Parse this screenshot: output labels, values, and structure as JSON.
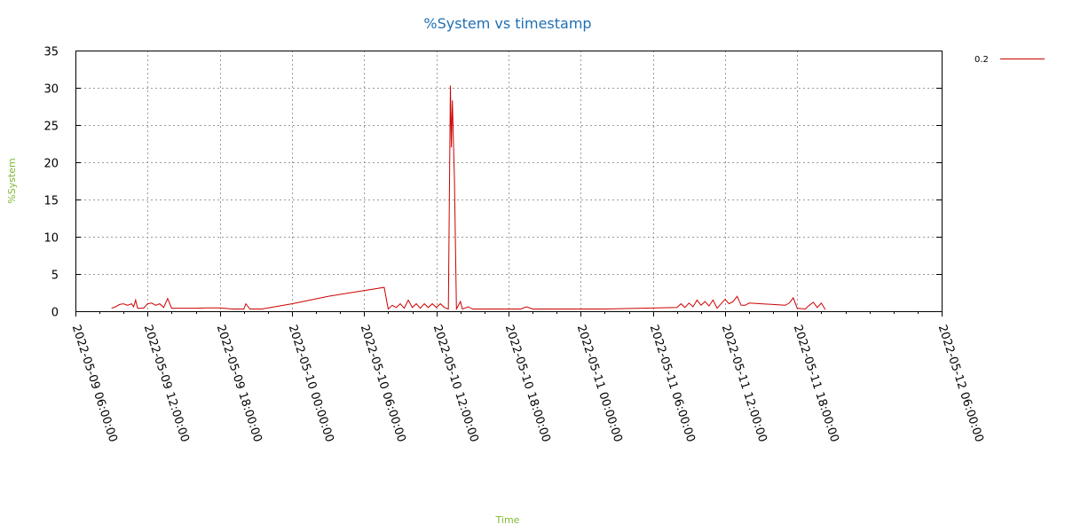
{
  "chart_data": {
    "type": "line",
    "title": "%System vs timestamp",
    "xlabel": "Time",
    "ylabel": "%System",
    "ylim": [
      0,
      35
    ],
    "y_ticks": [
      "0",
      "5",
      "10",
      "15",
      "20",
      "25",
      "30",
      "35"
    ],
    "xlim": [
      "2022-05-09 06:00:00",
      "2022-05-12 06:00:00"
    ],
    "x_ticks": [
      "2022-05-09 06:00:00",
      "2022-05-09 12:00:00",
      "2022-05-09 18:00:00",
      "2022-05-10 00:00:00",
      "2022-05-10 06:00:00",
      "2022-05-10 12:00:00",
      "2022-05-10 18:00:00",
      "2022-05-11 00:00:00",
      "2022-05-11 06:00:00",
      "2022-05-11 12:00:00",
      "2022-05-11 18:00:00",
      "2022-05-12 06:00:00"
    ],
    "grid": true,
    "legend_position": "top-right",
    "series": [
      {
        "name": "0.2",
        "color": "#cc0000",
        "points": [
          [
            "2022-05-09 09:00:00",
            0.4
          ],
          [
            "2022-05-09 09:20:00",
            0.6
          ],
          [
            "2022-05-09 09:40:00",
            0.9
          ],
          [
            "2022-05-09 10:00:00",
            1.0
          ],
          [
            "2022-05-09 10:20:00",
            0.8
          ],
          [
            "2022-05-09 10:40:00",
            1.0
          ],
          [
            "2022-05-09 10:50:00",
            0.6
          ],
          [
            "2022-05-09 11:00:00",
            1.5
          ],
          [
            "2022-05-09 11:10:00",
            0.4
          ],
          [
            "2022-05-09 11:40:00",
            0.4
          ],
          [
            "2022-05-09 12:00:00",
            1.0
          ],
          [
            "2022-05-09 12:20:00",
            1.1
          ],
          [
            "2022-05-09 12:40:00",
            0.8
          ],
          [
            "2022-05-09 13:00:00",
            1.0
          ],
          [
            "2022-05-09 13:20:00",
            0.5
          ],
          [
            "2022-05-09 13:40:00",
            1.7
          ],
          [
            "2022-05-09 14:00:00",
            0.4
          ],
          [
            "2022-05-09 15:00:00",
            0.4
          ],
          [
            "2022-05-09 16:00:00",
            0.4
          ],
          [
            "2022-05-09 17:00:00",
            0.45
          ],
          [
            "2022-05-09 18:00:00",
            0.45
          ],
          [
            "2022-05-09 19:00:00",
            0.3
          ],
          [
            "2022-05-09 20:00:00",
            0.3
          ],
          [
            "2022-05-09 20:10:00",
            1.0
          ],
          [
            "2022-05-09 20:30:00",
            0.3
          ],
          [
            "2022-05-09 21:30:00",
            0.3
          ],
          [
            "2022-05-10 00:00:00",
            1.0
          ],
          [
            "2022-05-10 03:00:00",
            2.0
          ],
          [
            "2022-05-10 07:40:00",
            3.2
          ],
          [
            "2022-05-10 08:00:00",
            0.3
          ],
          [
            "2022-05-10 08:20:00",
            0.8
          ],
          [
            "2022-05-10 08:40:00",
            0.5
          ],
          [
            "2022-05-10 09:00:00",
            1.0
          ],
          [
            "2022-05-10 09:20:00",
            0.4
          ],
          [
            "2022-05-10 09:40:00",
            1.5
          ],
          [
            "2022-05-10 10:00:00",
            0.5
          ],
          [
            "2022-05-10 10:20:00",
            1.0
          ],
          [
            "2022-05-10 10:40:00",
            0.4
          ],
          [
            "2022-05-10 11:00:00",
            1.0
          ],
          [
            "2022-05-10 11:20:00",
            0.5
          ],
          [
            "2022-05-10 11:40:00",
            1.0
          ],
          [
            "2022-05-10 12:00:00",
            0.5
          ],
          [
            "2022-05-10 12:20:00",
            1.0
          ],
          [
            "2022-05-10 12:40:00",
            0.5
          ],
          [
            "2022-05-10 13:00:00",
            0.3
          ],
          [
            "2022-05-10 13:10:00",
            30.3
          ],
          [
            "2022-05-10 13:15:00",
            22.0
          ],
          [
            "2022-05-10 13:20:00",
            28.3
          ],
          [
            "2022-05-10 13:30:00",
            18.0
          ],
          [
            "2022-05-10 13:40:00",
            0.3
          ],
          [
            "2022-05-10 14:00:00",
            1.3
          ],
          [
            "2022-05-10 14:10:00",
            0.3
          ],
          [
            "2022-05-10 14:40:00",
            0.6
          ],
          [
            "2022-05-10 15:00:00",
            0.3
          ],
          [
            "2022-05-10 18:00:00",
            0.3
          ],
          [
            "2022-05-10 19:00:00",
            0.3
          ],
          [
            "2022-05-10 19:30:00",
            0.6
          ],
          [
            "2022-05-10 20:00:00",
            0.3
          ],
          [
            "2022-05-11 02:00:00",
            0.3
          ],
          [
            "2022-05-11 08:00:00",
            0.5
          ],
          [
            "2022-05-11 08:20:00",
            1.0
          ],
          [
            "2022-05-11 08:40:00",
            0.5
          ],
          [
            "2022-05-11 09:00:00",
            1.1
          ],
          [
            "2022-05-11 09:20:00",
            0.6
          ],
          [
            "2022-05-11 09:40:00",
            1.5
          ],
          [
            "2022-05-11 10:00:00",
            0.8
          ],
          [
            "2022-05-11 10:20:00",
            1.3
          ],
          [
            "2022-05-11 10:40:00",
            0.7
          ],
          [
            "2022-05-11 11:00:00",
            1.5
          ],
          [
            "2022-05-11 11:20:00",
            0.4
          ],
          [
            "2022-05-11 11:40:00",
            1.0
          ],
          [
            "2022-05-11 12:00:00",
            1.6
          ],
          [
            "2022-05-11 12:20:00",
            1.0
          ],
          [
            "2022-05-11 12:40:00",
            1.3
          ],
          [
            "2022-05-11 13:00:00",
            2.0
          ],
          [
            "2022-05-11 13:20:00",
            0.8
          ],
          [
            "2022-05-11 13:40:00",
            0.8
          ],
          [
            "2022-05-11 14:00:00",
            1.1
          ],
          [
            "2022-05-11 15:00:00",
            1.0
          ],
          [
            "2022-05-11 16:00:00",
            0.9
          ],
          [
            "2022-05-11 17:00:00",
            0.8
          ],
          [
            "2022-05-11 17:20:00",
            1.1
          ],
          [
            "2022-05-11 17:40:00",
            1.8
          ],
          [
            "2022-05-11 18:00:00",
            0.4
          ],
          [
            "2022-05-11 18:40:00",
            0.3
          ],
          [
            "2022-05-11 19:00:00",
            0.8
          ],
          [
            "2022-05-11 19:20:00",
            1.2
          ],
          [
            "2022-05-11 19:40:00",
            0.5
          ],
          [
            "2022-05-11 20:00:00",
            1.1
          ],
          [
            "2022-05-11 20:20:00",
            0.2
          ]
        ]
      }
    ]
  }
}
